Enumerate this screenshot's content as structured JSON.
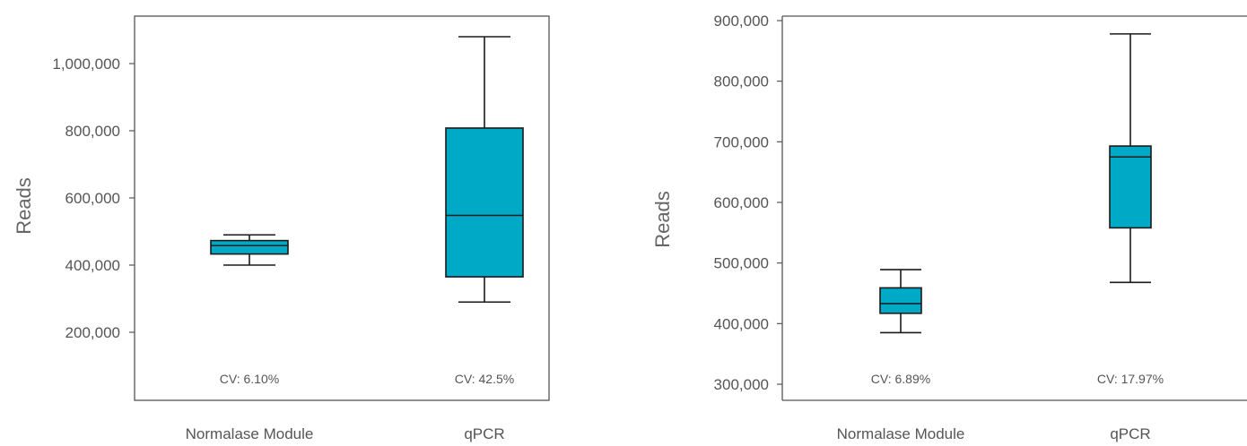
{
  "chart_data": [
    {
      "type": "box",
      "ylabel": "Reads",
      "ylim": [
        100000,
        1150000
      ],
      "yticks": [
        200000,
        400000,
        600000,
        800000,
        1000000
      ],
      "ytick_labels": [
        "200,000",
        "400,000",
        "600,000",
        "800,000",
        "1,000,000"
      ],
      "categories": [
        "Normalase Module",
        "qPCR"
      ],
      "box_color": "#00a9c6",
      "boxes": [
        {
          "category": "Normalase Module",
          "min": 400000,
          "q1": 433000,
          "median": 458000,
          "q3": 473000,
          "max": 490000,
          "annotation": "CV: 6.10%"
        },
        {
          "category": "qPCR",
          "min": 290000,
          "q1": 365000,
          "median": 548000,
          "q3": 808000,
          "max": 1080000,
          "annotation": "CV: 42.5%"
        }
      ]
    },
    {
      "type": "box",
      "ylabel": "Reads",
      "ylim": [
        280000,
        900000
      ],
      "yticks": [
        300000,
        400000,
        500000,
        600000,
        700000,
        800000,
        900000
      ],
      "ytick_labels": [
        "300,000",
        "400,000",
        "500,000",
        "600,000",
        "700,000",
        "800,000",
        "900,000"
      ],
      "categories": [
        "Normalase Module",
        "qPCR"
      ],
      "box_color": "#00a9c6",
      "boxes": [
        {
          "category": "Normalase Module",
          "min": 385000,
          "q1": 417000,
          "median": 433000,
          "q3": 459000,
          "max": 489000,
          "annotation": "CV: 6.89%"
        },
        {
          "category": "qPCR",
          "min": 468000,
          "q1": 558000,
          "median": 675000,
          "q3": 693000,
          "max": 878000,
          "annotation": "CV: 17.97%"
        }
      ]
    }
  ]
}
